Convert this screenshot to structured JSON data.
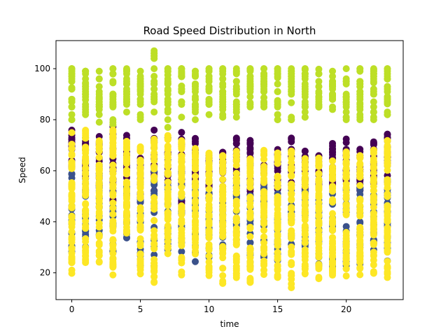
{
  "chart_data": {
    "type": "scatter",
    "title": "Road Speed Distribution in North",
    "xlabel": "time",
    "ylabel": "Speed",
    "xlim": [
      -1.15,
      24.15
    ],
    "ylim": [
      9.5,
      111
    ],
    "xticks": [
      0,
      5,
      10,
      15,
      20
    ],
    "yticks": [
      20,
      40,
      60,
      80,
      100
    ],
    "grid": false,
    "legend": "none",
    "x": [
      0,
      1,
      2,
      3,
      4,
      5,
      6,
      7,
      8,
      9,
      10,
      11,
      12,
      13,
      14,
      15,
      16,
      17,
      18,
      19,
      20,
      21,
      22,
      23
    ],
    "series": [
      {
        "color": "#440154",
        "ranges": [
          [
            58,
            76
          ],
          [
            55,
            73
          ],
          [
            52,
            74
          ],
          [
            48,
            79
          ],
          [
            50,
            75
          ],
          [
            46,
            65
          ],
          [
            52,
            76
          ],
          [
            50,
            75
          ],
          [
            44,
            76
          ],
          [
            52,
            73
          ],
          [
            48,
            70
          ],
          [
            56,
            68
          ],
          [
            50,
            73
          ],
          [
            50,
            73
          ],
          [
            45,
            65
          ],
          [
            52,
            70
          ],
          [
            50,
            73
          ],
          [
            52,
            68
          ],
          [
            54,
            66
          ],
          [
            54,
            71
          ],
          [
            55,
            74
          ],
          [
            52,
            72
          ],
          [
            54,
            72
          ],
          [
            55,
            77
          ]
        ]
      },
      {
        "color": "#3b528b",
        "ranges": [
          [
            26,
            60
          ],
          [
            30,
            60
          ],
          [
            34,
            60
          ],
          [
            28,
            58
          ],
          [
            32,
            56
          ],
          [
            22,
            54
          ],
          [
            22,
            60
          ],
          [
            24,
            56
          ],
          [
            28,
            60
          ],
          [
            24,
            56
          ],
          [
            22,
            52
          ],
          [
            28,
            56
          ],
          [
            30,
            56
          ],
          [
            20,
            52
          ],
          [
            26,
            56
          ],
          [
            24,
            56
          ],
          [
            26,
            56
          ],
          [
            30,
            54
          ],
          [
            22,
            52
          ],
          [
            22,
            56
          ],
          [
            22,
            56
          ],
          [
            22,
            54
          ],
          [
            28,
            52
          ],
          [
            24,
            58
          ]
        ]
      },
      {
        "color": "#bddf26",
        "ranges": [
          [
            80,
            100
          ],
          [
            72,
            100
          ],
          [
            78,
            100
          ],
          [
            76,
            100
          ],
          [
            82,
            100
          ],
          [
            78,
            100
          ],
          [
            82,
            107
          ],
          [
            74,
            100
          ],
          [
            80,
            100
          ],
          [
            80,
            100
          ],
          [
            80,
            100
          ],
          [
            80,
            100
          ],
          [
            80,
            100
          ],
          [
            80,
            100
          ],
          [
            80,
            100
          ],
          [
            80,
            100
          ],
          [
            80,
            100
          ],
          [
            80,
            100
          ],
          [
            80,
            100
          ],
          [
            80,
            100
          ],
          [
            80,
            100
          ],
          [
            80,
            100
          ],
          [
            80,
            100
          ],
          [
            80,
            100
          ]
        ]
      },
      {
        "color": "#fde725",
        "ranges": [
          [
            19,
            76
          ],
          [
            24,
            76
          ],
          [
            24,
            72
          ],
          [
            19,
            76
          ],
          [
            35,
            73
          ],
          [
            19,
            70
          ],
          [
            16,
            73
          ],
          [
            24,
            74
          ],
          [
            19,
            72
          ],
          [
            26,
            70
          ],
          [
            17,
            68
          ],
          [
            15,
            68
          ],
          [
            17,
            68
          ],
          [
            16,
            66
          ],
          [
            17,
            68
          ],
          [
            18,
            68
          ],
          [
            14,
            68
          ],
          [
            19,
            66
          ],
          [
            17,
            66
          ],
          [
            19,
            64
          ],
          [
            17,
            68
          ],
          [
            19,
            68
          ],
          [
            18,
            70
          ],
          [
            18,
            72
          ]
        ]
      }
    ]
  }
}
